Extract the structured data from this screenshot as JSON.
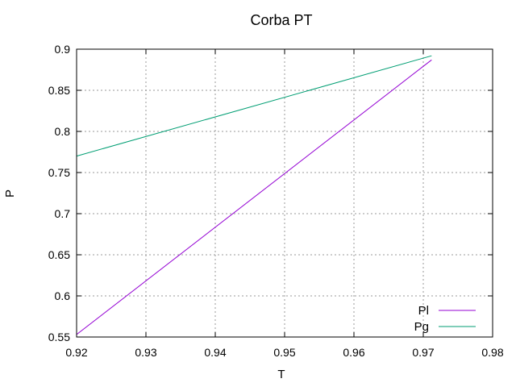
{
  "chart_data": {
    "type": "line",
    "title": "Corba PT",
    "xlabel": "T",
    "ylabel": "P",
    "xlim": [
      0.92,
      0.98
    ],
    "ylim": [
      0.55,
      0.9
    ],
    "xticks": [
      "0.92",
      "0.93",
      "0.94",
      "0.95",
      "0.96",
      "0.97",
      "0.98"
    ],
    "yticks": [
      "0.55",
      "0.6",
      "0.65",
      "0.7",
      "0.75",
      "0.8",
      "0.85",
      "0.9"
    ],
    "grid": true,
    "legend_position": "bottom-right",
    "series": [
      {
        "name": "Pl",
        "color": "#9400d3",
        "x": [
          0.92,
          0.9712
        ],
        "y": [
          0.553,
          0.887
        ]
      },
      {
        "name": "Pg",
        "color": "#009e73",
        "x": [
          0.92,
          0.9712
        ],
        "y": [
          0.77,
          0.892
        ]
      }
    ]
  }
}
